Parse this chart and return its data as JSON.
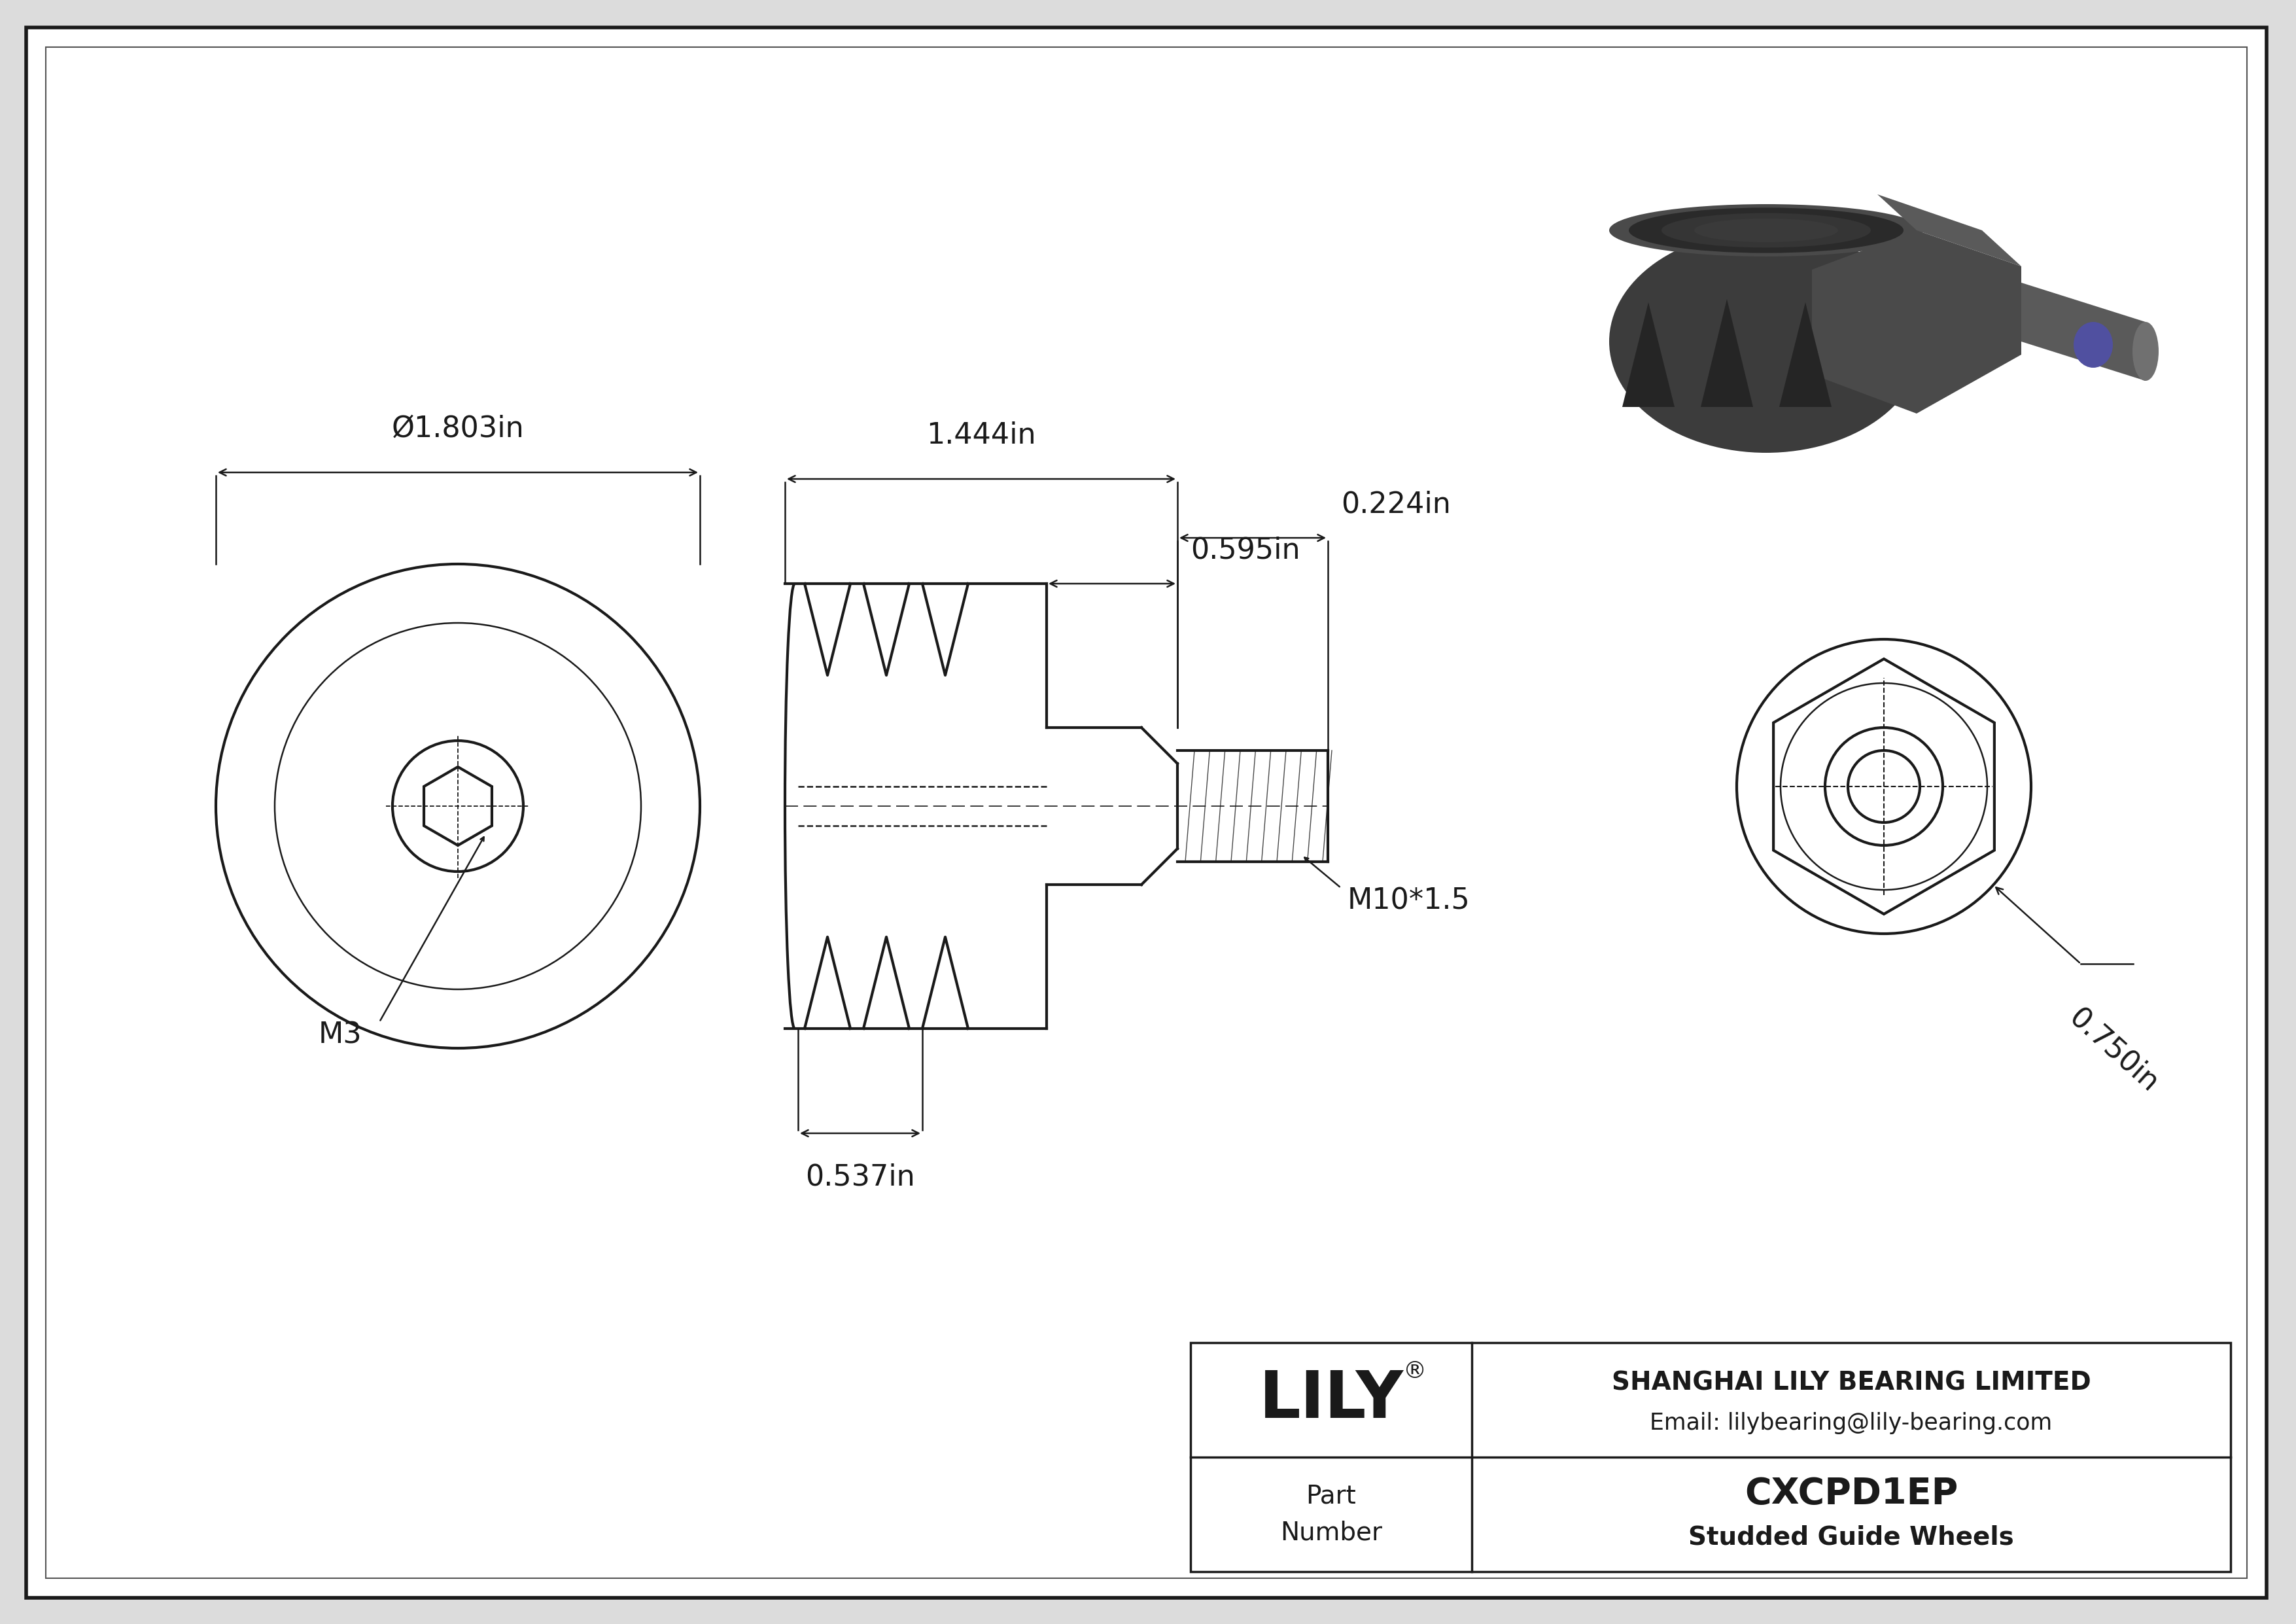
{
  "bg_color": "#dcdcdc",
  "line_color": "#1a1a1a",
  "part_number": "CXCPD1EP",
  "part_name": "Studded Guide Wheels",
  "company": "SHANGHAI LILY BEARING LIMITED",
  "email": "Email: lilybearing@lily-bearing.com",
  "dim_diameter": "Ø1.803in",
  "dim_length": "1.444in",
  "dim_tip": "0.224in",
  "dim_stud": "0.595in",
  "dim_hex_len": "0.537in",
  "dim_thread": "M10*1.5",
  "dim_m3": "M3",
  "dim_side": "0.750in"
}
